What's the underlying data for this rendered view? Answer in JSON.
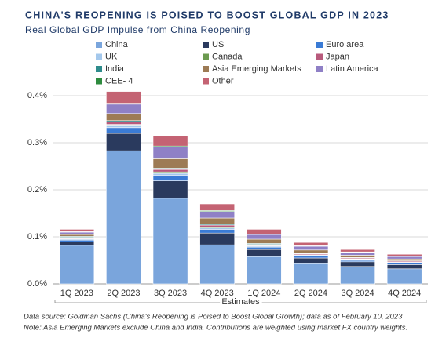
{
  "chart_data": {
    "type": "stacked_bar",
    "title": "CHINA'S REOPENING IS POISED TO BOOST GLOBAL GDP IN 2023",
    "subtitle": "Real Global GDP Impulse from China Reopening",
    "categories": [
      "1Q 2023",
      "2Q 2023",
      "3Q 2023",
      "4Q 2023",
      "1Q 2024",
      "2Q 2024",
      "3Q 2024",
      "4Q 2024"
    ],
    "series": [
      {
        "name": "China",
        "color": "#7aa5dc",
        "values": [
          0.082,
          0.283,
          0.182,
          0.083,
          0.058,
          0.043,
          0.037,
          0.032
        ]
      },
      {
        "name": "US",
        "color": "#2a3a5e",
        "values": [
          0.007,
          0.037,
          0.037,
          0.025,
          0.015,
          0.012,
          0.01,
          0.009
        ]
      },
      {
        "name": "Euro area",
        "color": "#3a7bd5",
        "values": [
          0.004,
          0.012,
          0.012,
          0.008,
          0.005,
          0.004,
          0.003,
          0.003
        ]
      },
      {
        "name": "UK",
        "color": "#a4c8ec",
        "values": [
          0.002,
          0.004,
          0.004,
          0.003,
          0.002,
          0.002,
          0.002,
          0.001
        ]
      },
      {
        "name": "Canada",
        "color": "#6b9a4f",
        "values": [
          0.001,
          0.003,
          0.003,
          0.002,
          0.001,
          0.001,
          0.001,
          0.001
        ]
      },
      {
        "name": "Japan",
        "color": "#b85a7c",
        "values": [
          0.003,
          0.005,
          0.005,
          0.004,
          0.003,
          0.002,
          0.002,
          0.002
        ]
      },
      {
        "name": "India",
        "color": "#2f8c8c",
        "values": [
          0.002,
          0.003,
          0.003,
          0.002,
          0.002,
          0.001,
          0.001,
          0.001
        ]
      },
      {
        "name": "Asia Emerging Markets",
        "color": "#9d7b55",
        "values": [
          0.004,
          0.015,
          0.02,
          0.013,
          0.009,
          0.007,
          0.005,
          0.004
        ]
      },
      {
        "name": "Latin America",
        "color": "#8f80c6",
        "values": [
          0.005,
          0.02,
          0.025,
          0.014,
          0.01,
          0.008,
          0.006,
          0.005
        ]
      },
      {
        "name": "CEE- 4",
        "color": "#2e8b3e",
        "values": [
          0.001,
          0.002,
          0.002,
          0.002,
          0.001,
          0.001,
          0.001,
          0.001
        ]
      },
      {
        "name": "Other",
        "color": "#c46373",
        "values": [
          0.005,
          0.025,
          0.022,
          0.014,
          0.01,
          0.007,
          0.005,
          0.004
        ]
      }
    ],
    "ylim": [
      0,
      0.4
    ],
    "yticks": [
      {
        "value": 0,
        "label": "0.0%"
      },
      {
        "value": 0.1,
        "label": "0.1%"
      },
      {
        "value": 0.2,
        "label": "0.2%"
      },
      {
        "value": 0.3,
        "label": "0.3%"
      },
      {
        "value": 0.4,
        "label": "0.4%"
      }
    ],
    "grid": true,
    "x_annotation": "Estimates",
    "source": "Data source: Goldman Sachs (China's Reopening is Poised to Boost Global Growth); data as of February 10, 2023",
    "note": "Note: Asia Emerging Markets exclude China and India. Contributions are weighted using market FX country weights."
  }
}
